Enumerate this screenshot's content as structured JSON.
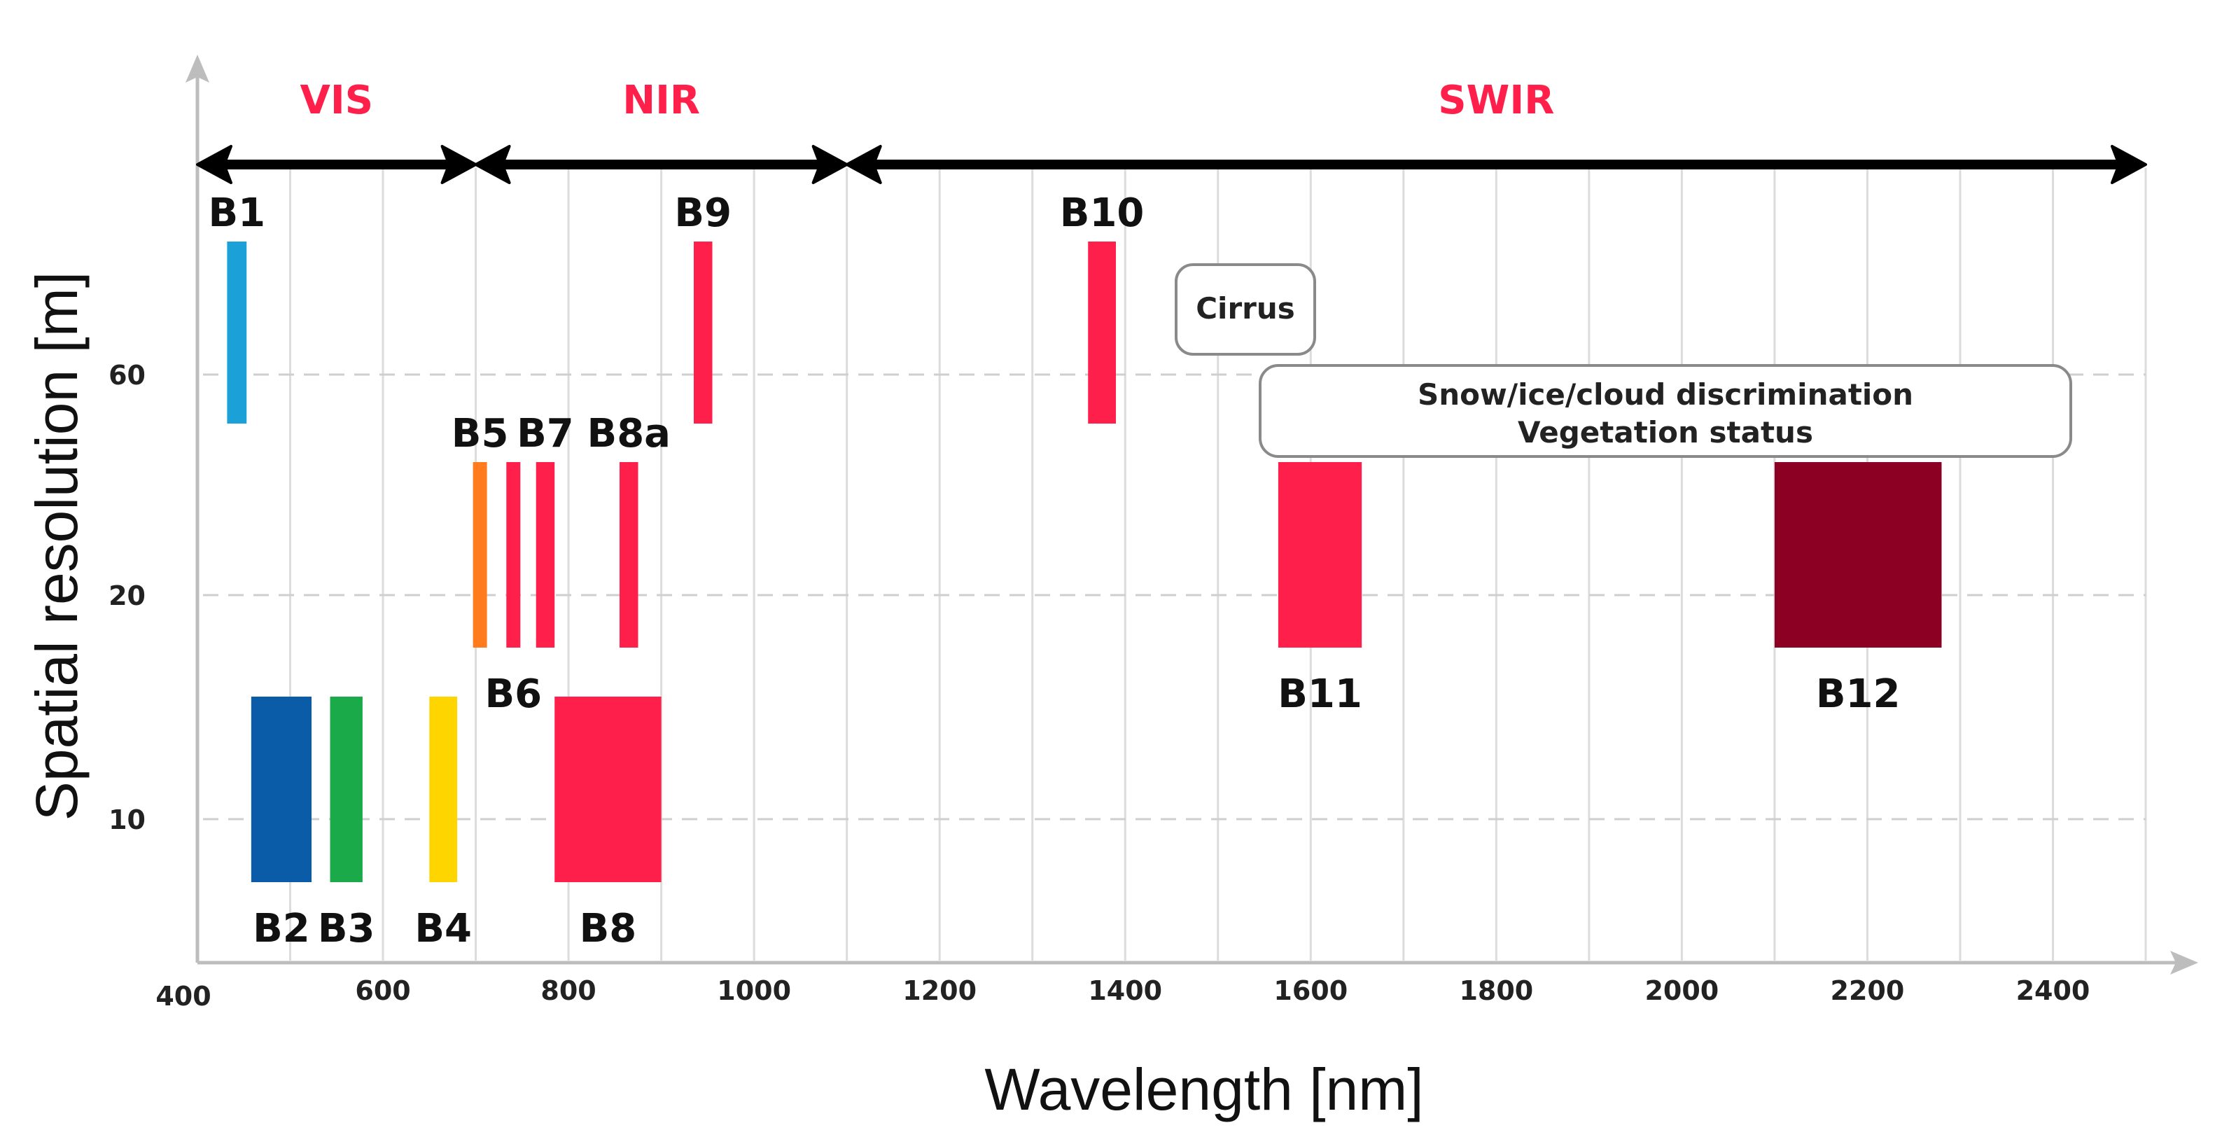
{
  "chart_data": {
    "type": "bar",
    "title": "",
    "xlabel": "Wavelength [nm]",
    "ylabel": "Spatial resolution [m]",
    "xlim": [
      400,
      2500
    ],
    "x_ticks": [
      "400",
      "600",
      "800",
      "1000",
      "1200",
      "1400",
      "1600",
      "1800",
      "2000",
      "2200",
      "2400"
    ],
    "y_ticks": [
      "10",
      "20",
      "60"
    ],
    "regions": [
      {
        "name": "VIS",
        "start": 400,
        "end": 700
      },
      {
        "name": "NIR",
        "start": 700,
        "end": 1100
      },
      {
        "name": "SWIR",
        "start": 1100,
        "end": 2500
      }
    ],
    "bands": [
      {
        "name": "B1",
        "start": 432,
        "end": 453,
        "resolution": 60,
        "color": "#1ba1d8"
      },
      {
        "name": "B2",
        "start": 458,
        "end": 523,
        "resolution": 10,
        "color": "#0a5ca8"
      },
      {
        "name": "B3",
        "start": 543,
        "end": 578,
        "resolution": 10,
        "color": "#1aaa4a"
      },
      {
        "name": "B4",
        "start": 650,
        "end": 680,
        "resolution": 10,
        "color": "#ffd500"
      },
      {
        "name": "B5",
        "start": 697,
        "end": 712,
        "resolution": 20,
        "color": "#ff7b1c"
      },
      {
        "name": "B6",
        "start": 733,
        "end": 748,
        "resolution": 20,
        "color": "#ff1f4b"
      },
      {
        "name": "B7",
        "start": 765,
        "end": 785,
        "resolution": 20,
        "color": "#ff1f4b"
      },
      {
        "name": "B8",
        "start": 785,
        "end": 900,
        "resolution": 10,
        "color": "#ff1f4b"
      },
      {
        "name": "B8a",
        "start": 855,
        "end": 875,
        "resolution": 20,
        "color": "#ff1f4b"
      },
      {
        "name": "B9",
        "start": 935,
        "end": 955,
        "resolution": 60,
        "color": "#ff1f4b"
      },
      {
        "name": "B10",
        "start": 1360,
        "end": 1390,
        "resolution": 60,
        "color": "#ff1f4b"
      },
      {
        "name": "B11",
        "start": 1565,
        "end": 1655,
        "resolution": 20,
        "color": "#ff1f4b"
      },
      {
        "name": "B12",
        "start": 2100,
        "end": 2280,
        "resolution": 20,
        "color": "#8b0023"
      }
    ],
    "annotations": [
      {
        "text": "Cirrus",
        "lines": [
          "Cirrus"
        ]
      },
      {
        "text": "Snow/ice/cloud discrimination Vegetation status",
        "lines": [
          "Snow/ice/cloud discrimination",
          "Vegetation status"
        ]
      }
    ]
  }
}
